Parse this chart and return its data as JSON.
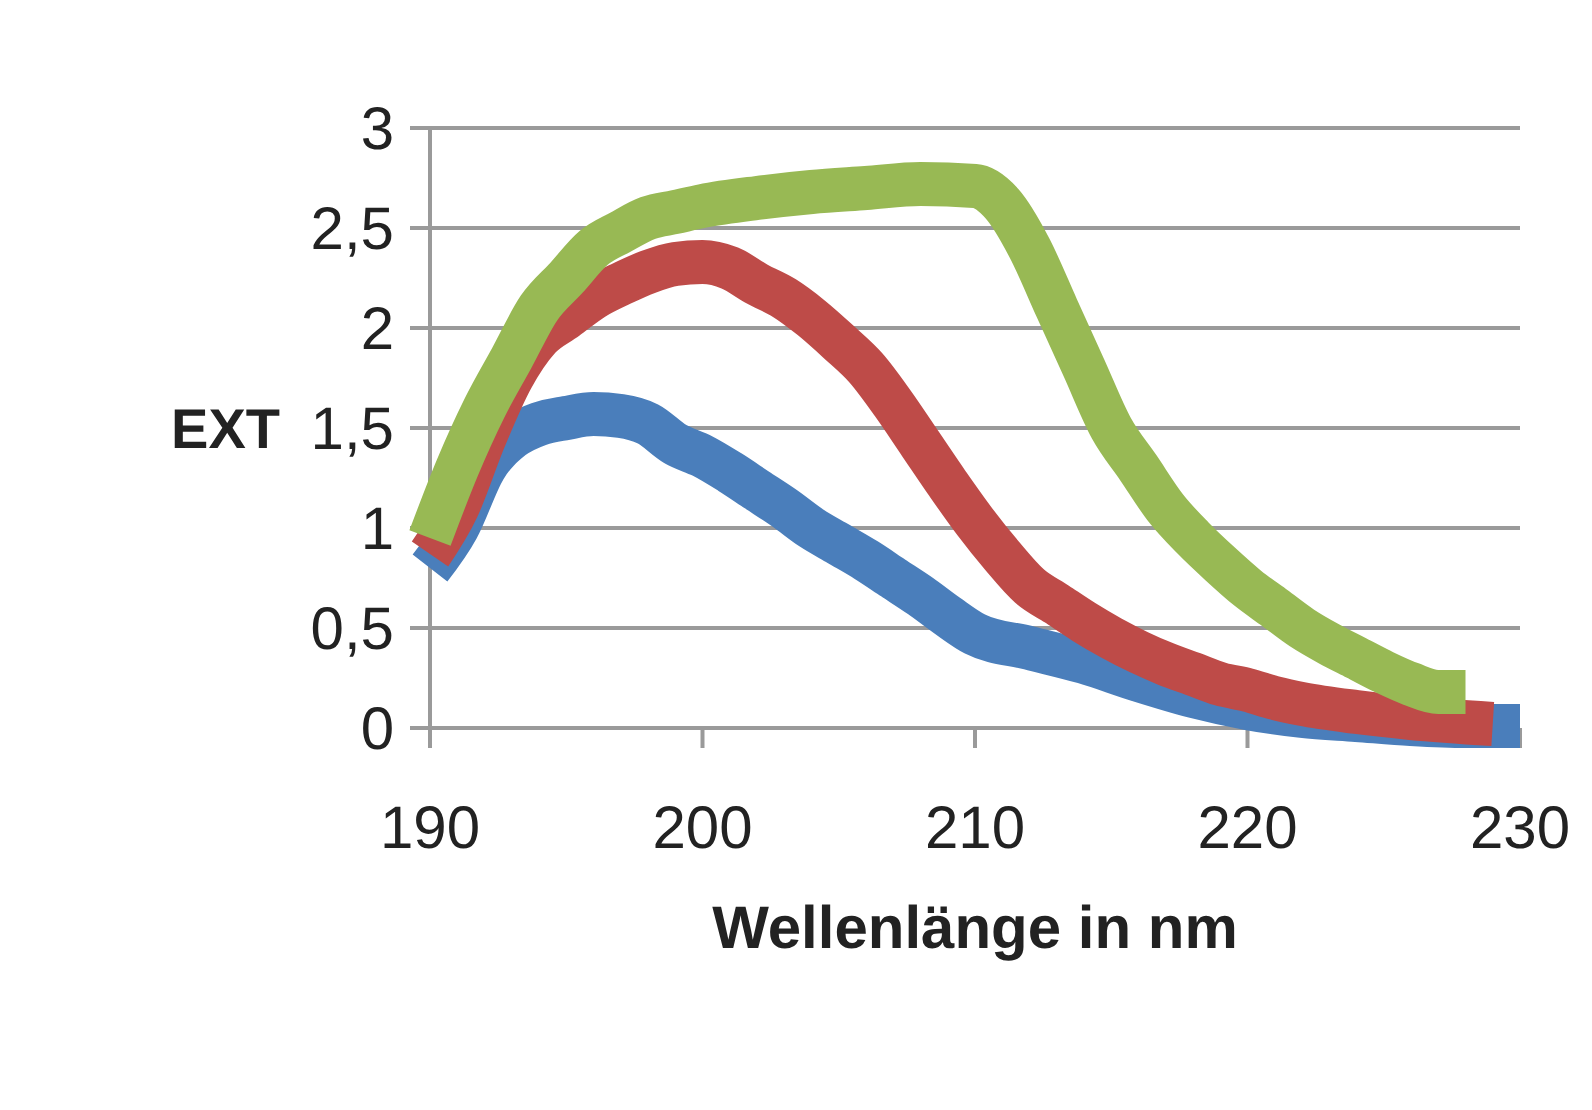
{
  "chart_data": {
    "type": "line",
    "xlabel": "Wellenlänge in nm",
    "ylabel": "EXT",
    "xlim": [
      190,
      230
    ],
    "xticks": [
      190,
      200,
      210,
      220,
      230
    ],
    "ylim": [
      0,
      3
    ],
    "yticks": [
      0,
      {
        "value": 0.5,
        "label": "0,5"
      },
      1,
      {
        "value": 1.5,
        "label": "1,5"
      },
      2,
      {
        "value": 2.5,
        "label": "2,5"
      },
      3
    ],
    "grid": "y",
    "series": [
      {
        "color": "#4a7ebb",
        "x": [
          190,
          191,
          192,
          193,
          194,
          195,
          196,
          197,
          198,
          199,
          200,
          201,
          202,
          203,
          204,
          205,
          206,
          207,
          208,
          209,
          210,
          212,
          214,
          216,
          218,
          220,
          222,
          224,
          226,
          228,
          230
        ],
        "values": [
          0.8,
          1.0,
          1.3,
          1.45,
          1.52,
          1.55,
          1.57,
          1.56,
          1.52,
          1.42,
          1.36,
          1.28,
          1.19,
          1.1,
          1.0,
          0.92,
          0.84,
          0.75,
          0.66,
          0.56,
          0.47,
          0.4,
          0.33,
          0.24,
          0.16,
          0.1,
          0.06,
          0.04,
          0.02,
          0.01,
          0.01
        ]
      },
      {
        "color": "#be4b48",
        "x": [
          190,
          191,
          192,
          193,
          194,
          195,
          196,
          197,
          198,
          199,
          200,
          201,
          202,
          203,
          204,
          205,
          206,
          207,
          208,
          209,
          210,
          211,
          212,
          213,
          214,
          215,
          216,
          217,
          218,
          219,
          220,
          221,
          222,
          224,
          226,
          229
        ],
        "values": [
          0.87,
          1.1,
          1.45,
          1.75,
          1.95,
          2.05,
          2.15,
          2.22,
          2.28,
          2.32,
          2.33,
          2.3,
          2.22,
          2.15,
          2.05,
          1.93,
          1.8,
          1.62,
          1.42,
          1.22,
          1.03,
          0.86,
          0.71,
          0.62,
          0.53,
          0.45,
          0.38,
          0.32,
          0.27,
          0.22,
          0.19,
          0.15,
          0.12,
          0.08,
          0.05,
          0.02
        ]
      },
      {
        "color": "#98b954",
        "x": [
          190,
          191,
          192,
          193,
          194,
          195,
          196,
          197,
          198,
          199,
          200,
          202,
          204,
          206,
          208,
          210,
          211,
          212,
          213,
          214,
          215,
          216,
          217,
          218,
          219,
          220,
          221,
          222,
          223,
          224,
          225,
          226,
          227,
          228
        ],
        "values": [
          0.95,
          1.3,
          1.6,
          1.85,
          2.1,
          2.25,
          2.4,
          2.48,
          2.55,
          2.58,
          2.61,
          2.65,
          2.68,
          2.7,
          2.72,
          2.71,
          2.62,
          2.4,
          2.1,
          1.8,
          1.5,
          1.3,
          1.1,
          0.95,
          0.82,
          0.7,
          0.6,
          0.5,
          0.42,
          0.35,
          0.28,
          0.22,
          0.18,
          0.18
        ]
      }
    ]
  }
}
